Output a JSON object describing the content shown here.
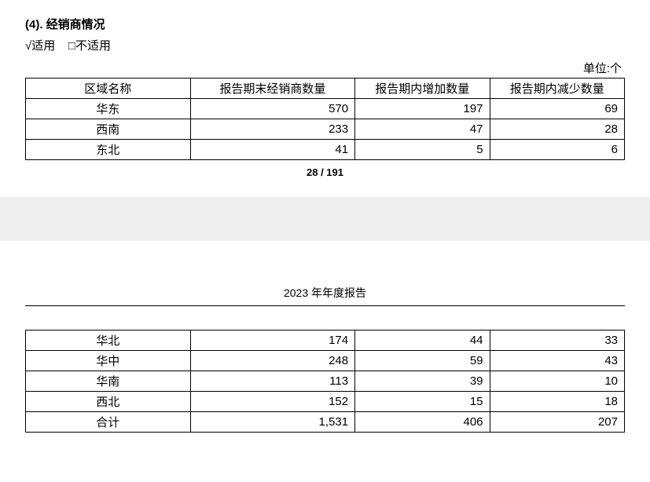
{
  "section": {
    "title": "(4). 经销商情况",
    "applicable_check": "√适用",
    "not_applicable_check": "□不适用",
    "unit_label": "单位:个"
  },
  "table1": {
    "headers": [
      "区域名称",
      "报告期末经销商数量",
      "报告期内增加数量",
      "报告期内减少数量"
    ],
    "rows": [
      {
        "region": "华东",
        "end_count": "570",
        "added": "197",
        "removed": "69"
      },
      {
        "region": "西南",
        "end_count": "233",
        "added": "47",
        "removed": "28"
      },
      {
        "region": "东北",
        "end_count": "41",
        "added": "5",
        "removed": "6"
      }
    ]
  },
  "page_number": "28 / 191",
  "report_title": "2023 年年度报告",
  "table2": {
    "rows": [
      {
        "region": "华北",
        "end_count": "174",
        "added": "44",
        "removed": "33"
      },
      {
        "region": "华中",
        "end_count": "248",
        "added": "59",
        "removed": "43"
      },
      {
        "region": "华南",
        "end_count": "113",
        "added": "39",
        "removed": "10"
      },
      {
        "region": "西北",
        "end_count": "152",
        "added": "15",
        "removed": "18"
      },
      {
        "region": "合计",
        "end_count": "1,531",
        "added": "406",
        "removed": "207"
      }
    ]
  }
}
